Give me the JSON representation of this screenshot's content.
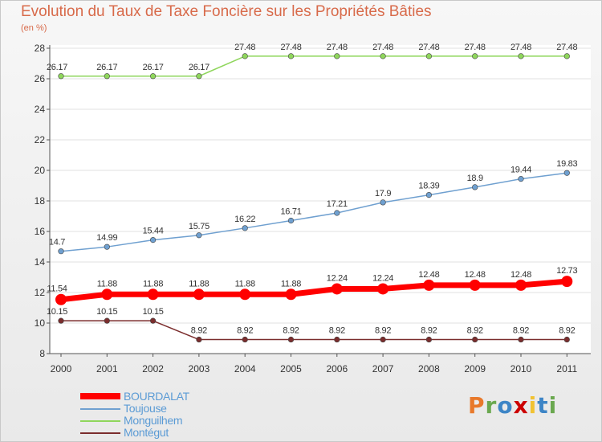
{
  "header": {
    "title": "Evolution du Taux de Taxe Foncière sur les Propriétés Bâties",
    "unit": "(en %)"
  },
  "brand": {
    "letters": [
      "P",
      "r",
      "o",
      "x",
      "i",
      "t",
      "i"
    ],
    "colors": [
      "#e8792b",
      "#6aa84f",
      "#3d85c6",
      "#cc0000",
      "#f1c232",
      "#3d85c6",
      "#6aa84f"
    ]
  },
  "chart_data": {
    "type": "line",
    "title": "Evolution du Taux de Taxe Foncière sur les Propriétés Bâties",
    "ylabel": "(en %)",
    "xlabel": "",
    "categories": [
      "2000",
      "2001",
      "2002",
      "2003",
      "2004",
      "2005",
      "2006",
      "2007",
      "2008",
      "2009",
      "2010",
      "2011"
    ],
    "ylim": [
      8,
      28
    ],
    "yticks": [
      8,
      10,
      12,
      14,
      16,
      18,
      20,
      22,
      24,
      26,
      28
    ],
    "series": [
      {
        "name": "BOURDALAT",
        "color": "#ff0000",
        "values": [
          11.54,
          11.88,
          11.88,
          11.88,
          11.88,
          11.88,
          12.24,
          12.24,
          12.48,
          12.48,
          12.48,
          12.73
        ],
        "labels": [
          "11.54",
          "11.88",
          "11.88",
          "11.88",
          "11.88",
          "11.88",
          "12.24",
          "12.24",
          "12.48",
          "12.48",
          "12.48",
          "12.73"
        ]
      },
      {
        "name": "Toujouse",
        "color": "#6fa0d0",
        "values": [
          14.7,
          14.99,
          15.44,
          15.75,
          16.22,
          16.71,
          17.21,
          17.9,
          18.39,
          18.9,
          19.44,
          19.83
        ],
        "labels": [
          "14.7",
          "14.99",
          "15.44",
          "15.75",
          "16.22",
          "16.71",
          "17.21",
          "17.9",
          "18.39",
          "18.9",
          "19.44",
          "19.83"
        ]
      },
      {
        "name": "Monguilhem",
        "color": "#8fd65c",
        "values": [
          26.17,
          26.17,
          26.17,
          26.17,
          27.48,
          27.48,
          27.48,
          27.48,
          27.48,
          27.48,
          27.48,
          27.48
        ],
        "labels": [
          "26.17",
          "26.17",
          "26.17",
          "26.17",
          "27.48",
          "27.48",
          "27.48",
          "27.48",
          "27.48",
          "27.48",
          "27.48",
          "27.48"
        ]
      },
      {
        "name": "Montégut",
        "color": "#7b2d2d",
        "values": [
          10.15,
          10.15,
          10.15,
          8.92,
          8.92,
          8.92,
          8.92,
          8.92,
          8.92,
          8.92,
          8.92,
          8.92
        ],
        "labels": [
          "10.15",
          "10.15",
          "10.15",
          "8.92",
          "8.92",
          "8.92",
          "8.92",
          "8.92",
          "8.92",
          "8.92",
          "8.92",
          "8.92"
        ]
      }
    ]
  }
}
